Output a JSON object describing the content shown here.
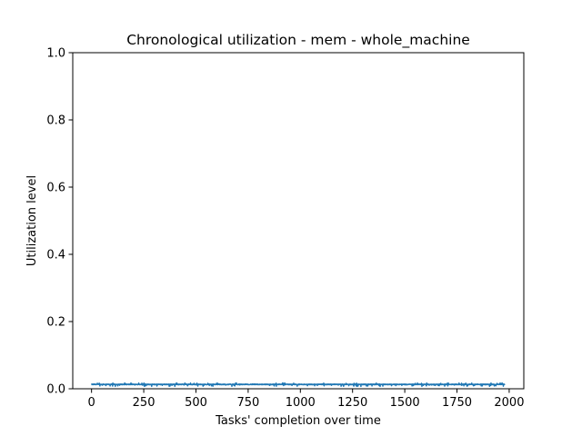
{
  "chart_data": {
    "type": "line",
    "title": "Chronological utilization - mem - whole_machine",
    "xlabel": "Tasks' completion over time",
    "ylabel": "Utilization level",
    "xlim": [
      -90,
      2070
    ],
    "ylim": [
      0,
      1
    ],
    "xticks": [
      0,
      250,
      500,
      750,
      1000,
      1250,
      1500,
      1750,
      2000
    ],
    "xtick_labels": [
      "0",
      "250",
      "500",
      "750",
      "1000",
      "1250",
      "1500",
      "1750",
      "2000"
    ],
    "yticks": [
      0,
      0.2,
      0.4,
      0.6,
      0.8,
      1.0
    ],
    "ytick_labels": [
      "0.0",
      "0.2",
      "0.4",
      "0.6",
      "0.8",
      "1.0"
    ],
    "grid": false,
    "legend": "none",
    "series": [
      {
        "color": "#1f77b4",
        "x_start": 0,
        "x_end": 1980,
        "points": 1981,
        "y_min": 0.007,
        "y_max": 0.017,
        "y_typical": 0.013
      }
    ]
  }
}
